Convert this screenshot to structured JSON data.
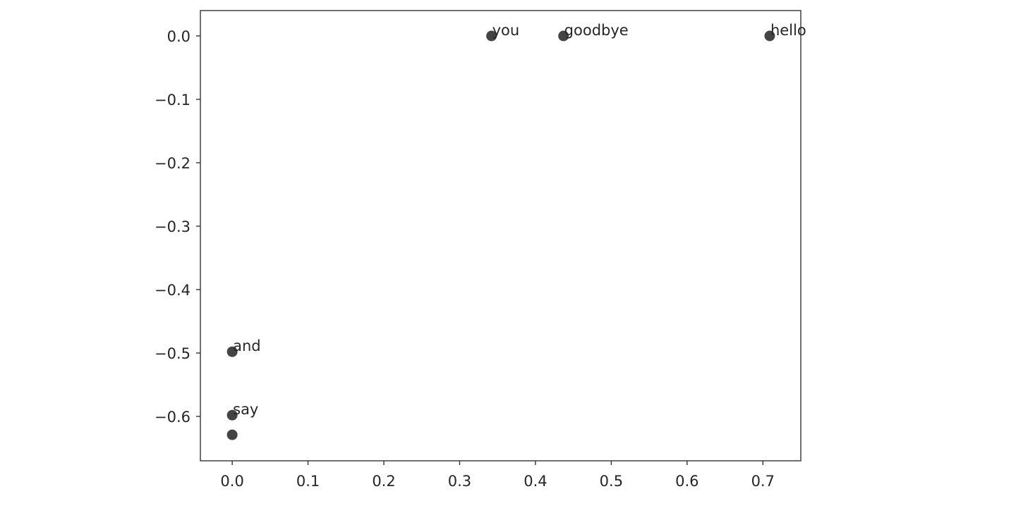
{
  "chart_data": {
    "type": "scatter",
    "title": "",
    "xlabel": "",
    "ylabel": "",
    "xlim": [
      -0.042,
      0.75
    ],
    "ylim": [
      -0.67,
      0.04
    ],
    "xticks": [
      0.0,
      0.1,
      0.2,
      0.3,
      0.4,
      0.5,
      0.6,
      0.7
    ],
    "xtick_labels": [
      "0.0",
      "0.1",
      "0.2",
      "0.3",
      "0.4",
      "0.5",
      "0.6",
      "0.7"
    ],
    "yticks": [
      0.0,
      -0.1,
      -0.2,
      -0.3,
      -0.4,
      -0.5,
      -0.6
    ],
    "ytick_labels": [
      "0.0",
      "−0.1",
      "−0.2",
      "−0.3",
      "−0.4",
      "−0.5",
      "−0.6"
    ],
    "grid": false,
    "marker_color": "#444444",
    "points": [
      {
        "x": 0.342,
        "y": 0.0,
        "label": "you"
      },
      {
        "x": 0.437,
        "y": 0.0,
        "label": "goodbye"
      },
      {
        "x": 0.709,
        "y": 0.0,
        "label": "hello"
      },
      {
        "x": 0.0,
        "y": -0.498,
        "label": "and"
      },
      {
        "x": 0.0,
        "y": -0.598,
        "label": "say"
      },
      {
        "x": 0.0,
        "y": -0.629,
        "label": ""
      }
    ]
  }
}
